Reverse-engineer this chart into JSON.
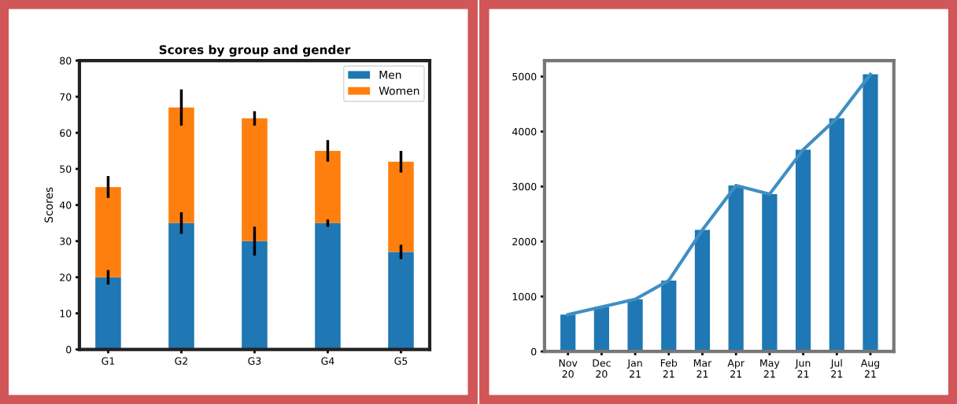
{
  "chart_data": [
    {
      "type": "bar",
      "title": "Scores by group and gender",
      "ylabel": "Scores",
      "categories": [
        "G1",
        "G2",
        "G3",
        "G4",
        "G5"
      ],
      "stacked": true,
      "ylim": [
        0,
        80
      ],
      "yticks": [
        0,
        10,
        20,
        30,
        40,
        50,
        60,
        70,
        80
      ],
      "legend": "top right",
      "grid": false,
      "series": [
        {
          "name": "Men",
          "color": "#1f77b4",
          "values": [
            20,
            35,
            30,
            35,
            27
          ],
          "errors": [
            2,
            3,
            4,
            1,
            2
          ]
        },
        {
          "name": "Women",
          "color": "#ff7f0e",
          "values": [
            25,
            32,
            34,
            20,
            25
          ],
          "errors": [
            3,
            5,
            2,
            3,
            3
          ]
        }
      ]
    },
    {
      "type": "bar",
      "categories": [
        "Nov\n20",
        "Dec\n20",
        "Jan\n21",
        "Feb\n21",
        "Mar\n21",
        "Apr\n21",
        "May\n21",
        "Jun\n21",
        "Jul\n21",
        "Aug\n21"
      ],
      "ylim": [
        0,
        5290
      ],
      "yticks": [
        0,
        1000,
        2000,
        3000,
        4000,
        5000
      ],
      "grid": false,
      "legend": false,
      "series": [
        {
          "type": "bar",
          "color": "#1f77b4",
          "values": [
            670,
            810,
            950,
            1290,
            2210,
            3020,
            2860,
            3670,
            4240,
            5040
          ]
        },
        {
          "type": "line",
          "color": "#3f8fc4",
          "values": [
            670,
            810,
            950,
            1290,
            2210,
            3020,
            2860,
            3670,
            4240,
            5040
          ]
        }
      ]
    }
  ]
}
